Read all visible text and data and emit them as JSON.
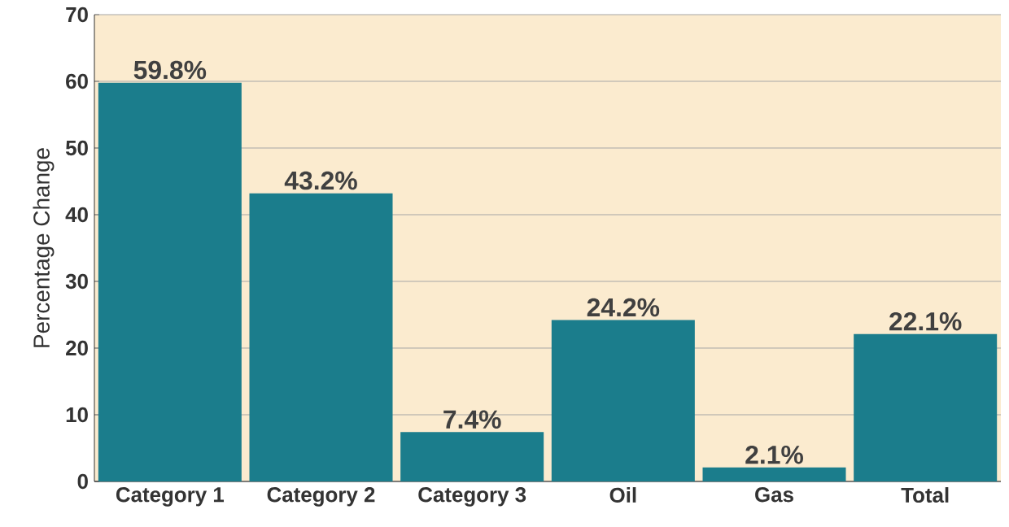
{
  "chart_data": {
    "type": "bar",
    "ylabel": "Percentage Change",
    "categories": [
      "Category 1",
      "Category 2",
      "Category 3",
      "Oil",
      "Gas",
      "Total"
    ],
    "values": [
      59.8,
      43.2,
      7.4,
      24.2,
      2.1,
      22.1
    ],
    "value_labels": [
      "59.8%",
      "43.2%",
      "7.4%",
      "24.2%",
      "2.1%",
      "22.1%"
    ],
    "color": "#1b7d8c",
    "ylim": [
      0,
      70
    ],
    "yticks": [
      0,
      10,
      20,
      30,
      40,
      50,
      60,
      70
    ],
    "grid": "y"
  }
}
